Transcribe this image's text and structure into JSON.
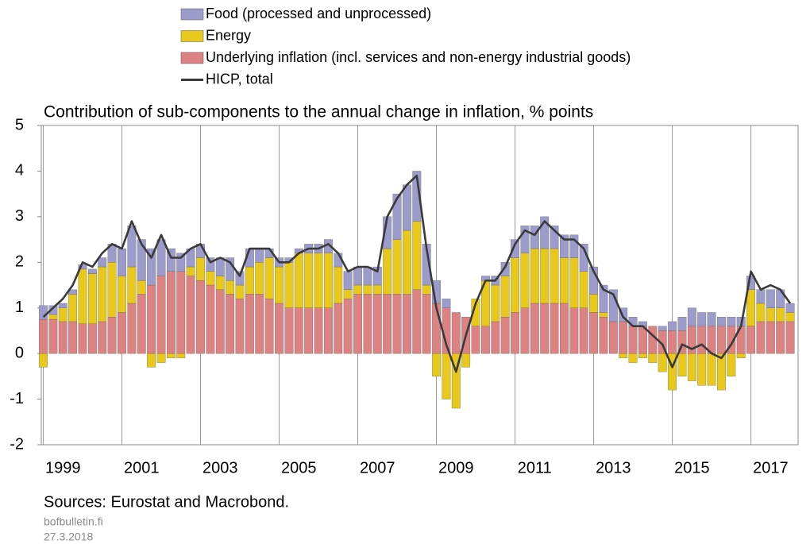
{
  "chart_data": {
    "type": "bar",
    "title": "Contribution of sub-components to the annual change in inflation, % points",
    "source": "Sources: Eurostat and Macrobond.",
    "site": "bofbulletin.fi",
    "date": "27.3.2018",
    "x": [
      1999,
      1999.25,
      1999.5,
      1999.75,
      2000,
      2000.25,
      2000.5,
      2000.75,
      2001,
      2001.25,
      2001.5,
      2001.75,
      2002,
      2002.25,
      2002.5,
      2002.75,
      2003,
      2003.25,
      2003.5,
      2003.75,
      2004,
      2004.25,
      2004.5,
      2004.75,
      2005,
      2005.25,
      2005.5,
      2005.75,
      2006,
      2006.25,
      2006.5,
      2006.75,
      2007,
      2007.25,
      2007.5,
      2007.75,
      2008,
      2008.25,
      2008.5,
      2008.75,
      2009,
      2009.25,
      2009.5,
      2009.75,
      2010,
      2010.25,
      2010.5,
      2010.75,
      2011,
      2011.25,
      2011.5,
      2011.75,
      2012,
      2012.25,
      2012.5,
      2012.75,
      2013,
      2013.25,
      2013.5,
      2013.75,
      2014,
      2014.25,
      2014.5,
      2014.75,
      2015,
      2015.25,
      2015.5,
      2015.75,
      2016,
      2016.25,
      2016.5,
      2016.75,
      2017,
      2017.25,
      2017.5,
      2017.75,
      2018
    ],
    "series": [
      {
        "name": "Food (processed and unprocessed)",
        "color": "#9c9ccc",
        "type": "bar",
        "values": [
          0.3,
          0.2,
          0.1,
          0.1,
          0.1,
          0.1,
          0.2,
          0.4,
          0.6,
          0.9,
          0.9,
          0.8,
          0.8,
          0.5,
          0.4,
          0.4,
          0.3,
          0.3,
          0.4,
          0.5,
          0.3,
          0.4,
          0.3,
          0.2,
          0.2,
          0.1,
          0.1,
          0.2,
          0.2,
          0.3,
          0.3,
          0.4,
          0.4,
          0.4,
          0.4,
          0.7,
          1.0,
          1.0,
          1.1,
          0.9,
          0.5,
          0.2,
          0.0,
          0.0,
          0.0,
          0.1,
          0.2,
          0.3,
          0.4,
          0.6,
          0.5,
          0.7,
          0.5,
          0.5,
          0.5,
          0.6,
          0.6,
          0.6,
          0.7,
          0.3,
          0.2,
          0.1,
          0.0,
          0.1,
          0.2,
          0.3,
          0.4,
          0.3,
          0.3,
          0.2,
          0.2,
          0.2,
          0.3,
          0.3,
          0.4,
          0.4,
          0.2
        ]
      },
      {
        "name": "Energy",
        "color": "#e8c81c",
        "type": "bar",
        "values": [
          -0.3,
          0.1,
          0.3,
          0.6,
          1.2,
          1.1,
          1.2,
          1.2,
          0.8,
          0.8,
          0.3,
          -0.3,
          -0.2,
          -0.1,
          -0.1,
          0.2,
          0.5,
          0.3,
          0.3,
          0.3,
          0.3,
          0.6,
          0.7,
          0.9,
          0.8,
          1.0,
          1.2,
          1.2,
          1.2,
          1.2,
          0.8,
          0.2,
          0.2,
          0.2,
          0.2,
          1.0,
          1.2,
          1.4,
          1.5,
          0.2,
          -0.5,
          -1.0,
          -1.2,
          -0.3,
          0.6,
          1.0,
          0.8,
          0.9,
          1.2,
          1.2,
          1.2,
          1.2,
          1.2,
          1.0,
          1.1,
          0.8,
          0.4,
          0.1,
          0.0,
          -0.1,
          -0.2,
          -0.1,
          -0.2,
          -0.4,
          -0.8,
          -0.5,
          -0.6,
          -0.7,
          -0.7,
          -0.8,
          -0.5,
          -0.1,
          0.8,
          0.4,
          0.3,
          0.3,
          0.2
        ]
      },
      {
        "name": "Underlying inflation (incl. services and non-energy industrial goods)",
        "color": "#dc8282",
        "type": "bar",
        "values": [
          0.75,
          0.75,
          0.7,
          0.7,
          0.65,
          0.65,
          0.7,
          0.8,
          0.9,
          1.1,
          1.3,
          1.5,
          1.7,
          1.8,
          1.8,
          1.7,
          1.6,
          1.5,
          1.4,
          1.3,
          1.2,
          1.3,
          1.3,
          1.2,
          1.1,
          1.0,
          1.0,
          1.0,
          1.0,
          1.0,
          1.1,
          1.2,
          1.3,
          1.3,
          1.3,
          1.3,
          1.3,
          1.3,
          1.4,
          1.3,
          1.1,
          1.0,
          0.9,
          0.8,
          0.6,
          0.6,
          0.7,
          0.8,
          0.9,
          1.0,
          1.1,
          1.1,
          1.1,
          1.1,
          1.0,
          1.0,
          0.9,
          0.8,
          0.7,
          0.7,
          0.6,
          0.6,
          0.6,
          0.5,
          0.5,
          0.5,
          0.6,
          0.6,
          0.6,
          0.6,
          0.6,
          0.6,
          0.6,
          0.7,
          0.7,
          0.7,
          0.7
        ]
      },
      {
        "name": "HICP, total",
        "color": "#3a3a3a",
        "type": "line",
        "values": [
          0.8,
          1.0,
          1.2,
          1.5,
          2.0,
          1.9,
          2.2,
          2.4,
          2.3,
          2.9,
          2.4,
          2.1,
          2.6,
          2.1,
          2.1,
          2.3,
          2.4,
          2.0,
          2.1,
          2.0,
          1.7,
          2.3,
          2.3,
          2.3,
          2.0,
          2.0,
          2.2,
          2.3,
          2.3,
          2.4,
          2.2,
          1.8,
          1.9,
          1.9,
          1.8,
          3.0,
          3.4,
          3.7,
          3.9,
          2.3,
          1.0,
          0.2,
          -0.4,
          0.4,
          1.1,
          1.6,
          1.6,
          1.9,
          2.4,
          2.7,
          2.6,
          2.9,
          2.7,
          2.5,
          2.5,
          2.3,
          1.8,
          1.4,
          1.3,
          0.8,
          0.6,
          0.6,
          0.4,
          0.2,
          -0.3,
          0.2,
          0.1,
          0.2,
          0.0,
          -0.1,
          0.2,
          0.6,
          1.8,
          1.4,
          1.5,
          1.4,
          1.1
        ]
      }
    ],
    "xlim": [
      1998.95,
      2018.2
    ],
    "xticks": [
      1999,
      2001,
      2003,
      2005,
      2007,
      2009,
      2011,
      2013,
      2015,
      2017
    ],
    "ylim": [
      -2,
      5
    ],
    "yticks": [
      -2,
      -1,
      0,
      1,
      2,
      3,
      4,
      5
    ],
    "grid": true
  }
}
